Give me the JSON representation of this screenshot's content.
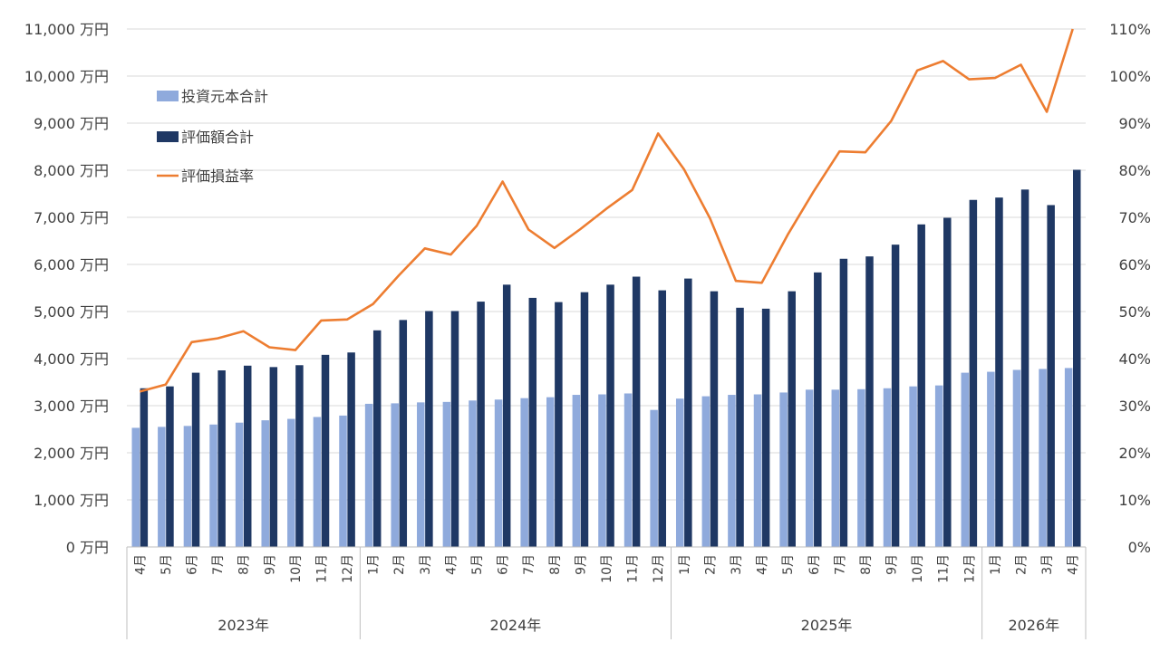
{
  "chart_data": {
    "type": "bar",
    "categories": [
      "4月",
      "5月",
      "6月",
      "7月",
      "8月",
      "9月",
      "10月",
      "11月",
      "12月",
      "1月",
      "2月",
      "3月",
      "4月",
      "5月",
      "6月",
      "7月",
      "8月",
      "9月",
      "10月",
      "11月",
      "12月",
      "1月",
      "2月",
      "3月",
      "4月",
      "5月",
      "6月",
      "7月",
      "8月",
      "9月",
      "10月",
      "11月",
      "12月",
      "1月",
      "2月",
      "3月",
      "4月"
    ],
    "year_groups": [
      {
        "label": "2023年",
        "count": 9
      },
      {
        "label": "2024年",
        "count": 12
      },
      {
        "label": "2025年",
        "count": 12
      },
      {
        "label": "2026年",
        "count": 4
      }
    ],
    "series": [
      {
        "name": "投資元本合計",
        "kind": "bar",
        "axis": "left",
        "color": "#8faadc",
        "values": [
          2530,
          2550,
          2570,
          2600,
          2640,
          2690,
          2720,
          2760,
          2790,
          3040,
          3050,
          3070,
          3080,
          3110,
          3130,
          3160,
          3180,
          3230,
          3240,
          3260,
          2910,
          3150,
          3200,
          3230,
          3240,
          3280,
          3340,
          3340,
          3350,
          3370,
          3410,
          3430,
          3700,
          3720,
          3760,
          3780,
          3800
        ]
      },
      {
        "name": "評価額合計",
        "kind": "bar",
        "axis": "left",
        "color": "#1f3864",
        "values": [
          3370,
          3410,
          3700,
          3750,
          3850,
          3820,
          3860,
          4080,
          4130,
          4600,
          4820,
          5010,
          5010,
          5210,
          5570,
          5290,
          5200,
          5410,
          5570,
          5740,
          5450,
          5700,
          5430,
          5080,
          5060,
          5430,
          5830,
          6120,
          6170,
          6420,
          6850,
          6990,
          7370,
          7420,
          7590,
          7260,
          8010
        ]
      },
      {
        "name": "評価損益率",
        "kind": "line",
        "axis": "right",
        "color": "#ed7d31",
        "values": [
          33,
          34.5,
          43.5,
          44.3,
          45.8,
          42.4,
          41.8,
          48.1,
          48.3,
          51.6,
          57.7,
          63.4,
          62.1,
          68.2,
          77.6,
          67.4,
          63.5,
          67.5,
          71.8,
          75.8,
          87.8,
          80.2,
          69.8,
          56.5,
          56.1,
          66.3,
          75.5,
          84,
          83.8,
          90.5,
          101.2,
          103.2,
          99.3,
          99.6,
          102.4,
          92.4,
          110
        ]
      }
    ],
    "y_left": {
      "ylim": [
        0,
        11000
      ],
      "ticks": [
        "0 万円",
        "1,000 万円",
        "2,000 万円",
        "3,000 万円",
        "4,000 万円",
        "5,000 万円",
        "6,000 万円",
        "7,000 万円",
        "8,000 万円",
        "9,000 万円",
        "10,000 万円",
        "11,000 万円"
      ]
    },
    "y_right": {
      "ylim": [
        0,
        110
      ],
      "ticks": [
        "0%",
        "10%",
        "20%",
        "30%",
        "40%",
        "50%",
        "60%",
        "70%",
        "80%",
        "90%",
        "100%",
        "110%"
      ]
    },
    "legend": {
      "placement": "top-left"
    },
    "grid": true,
    "colors": {
      "gridline": "#d9d9d9",
      "axis": "#bfbfbf",
      "text": "#404040"
    }
  }
}
